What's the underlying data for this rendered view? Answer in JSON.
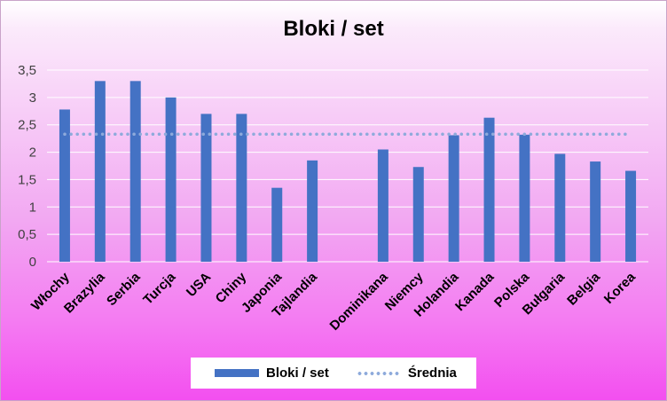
{
  "chart_data": {
    "type": "bar",
    "title": "Bloki / set",
    "categories": [
      "Włochy",
      "Brazylia",
      "Serbia",
      "Turcja",
      "USA",
      "Chiny",
      "Japonia",
      "Tajlandia",
      "",
      "Dominikana",
      "Niemcy",
      "Holandia",
      "Kanada",
      "Polska",
      "Bułgaria",
      "Belgia",
      "Korea"
    ],
    "series": [
      {
        "name": "Bloki / set",
        "type": "bar",
        "color": "#4472c4",
        "values": [
          2.78,
          3.3,
          3.3,
          3.0,
          2.7,
          2.7,
          1.35,
          1.85,
          null,
          2.05,
          1.73,
          2.31,
          2.63,
          2.32,
          1.97,
          1.83,
          1.66
        ]
      },
      {
        "name": "Średnia",
        "type": "line",
        "style": "dotted",
        "color": "#8eaadb",
        "values": [
          2.33,
          2.33,
          2.33,
          2.33,
          2.33,
          2.33,
          2.33,
          2.33,
          2.33,
          2.33,
          2.33,
          2.33,
          2.33,
          2.33,
          2.33,
          2.33,
          2.33
        ]
      }
    ],
    "y_ticks": [
      "0",
      "0,5",
      "1",
      "1,5",
      "2",
      "2,5",
      "3",
      "3,5"
    ],
    "ylim": [
      0,
      3.5
    ],
    "grid": true,
    "legend_position": "bottom"
  }
}
